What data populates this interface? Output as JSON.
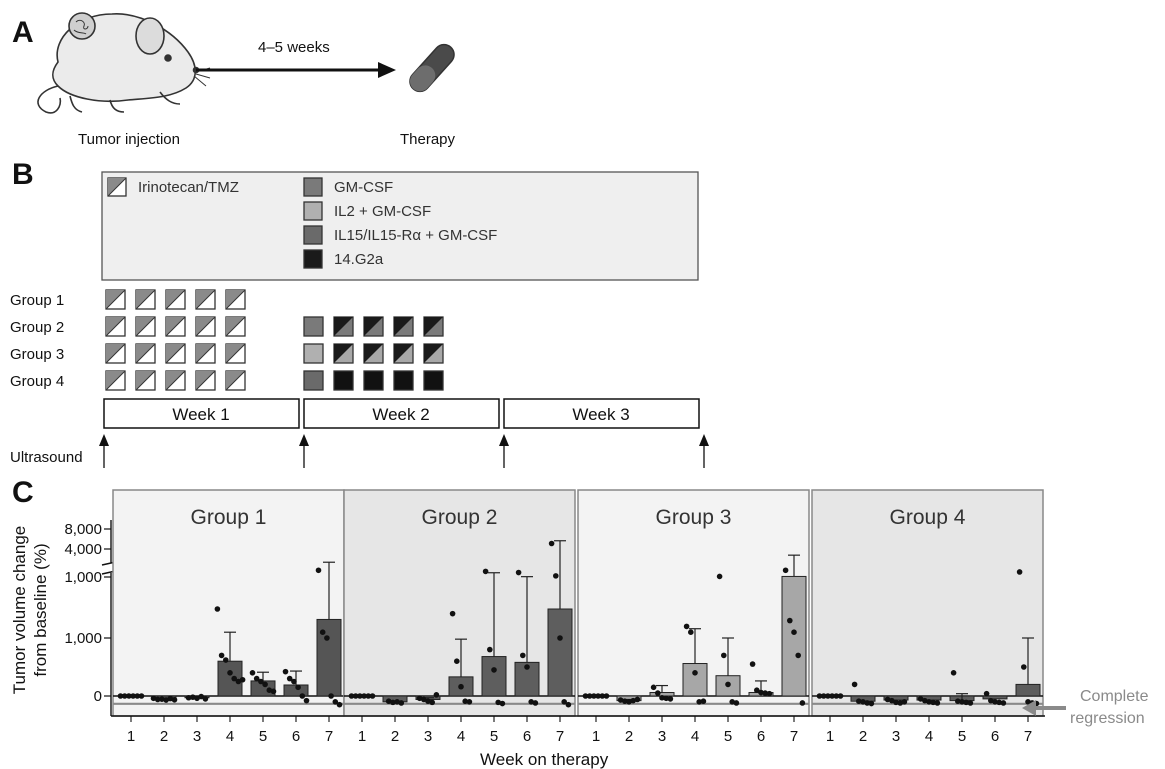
{
  "panelA": {
    "label": "A",
    "duration": "4–5 weeks",
    "left_caption": "Tumor injection",
    "right_caption": "Therapy"
  },
  "panelB": {
    "label": "B",
    "legend": [
      {
        "key": "irino",
        "label": "Irinotecan/TMZ",
        "color": "#8a8a8a",
        "split": true
      },
      {
        "key": "gm",
        "label": "GM-CSF",
        "color": "#7a7a7a"
      },
      {
        "key": "il2",
        "label": "IL2 + GM-CSF",
        "color": "#b0b0b0"
      },
      {
        "key": "il15",
        "label": "IL15/IL15-Rα + GM-CSF",
        "color": "#6a6a6a"
      },
      {
        "key": "g2a",
        "label": "14.G2a",
        "color": "#1a1a1a"
      }
    ],
    "groups": [
      {
        "label": "Group 1",
        "week2_first": null,
        "week2_split": null
      },
      {
        "label": "Group 2",
        "week2_first": "#7a7a7a",
        "week2_split": "#7a7a7a"
      },
      {
        "label": "Group 3",
        "week2_first": "#b0b0b0",
        "week2_split": "#a8a8a8"
      },
      {
        "label": "Group 4",
        "week2_first": "#6a6a6a",
        "week2_split": null
      }
    ],
    "weeks": [
      "Week 1",
      "Week 2",
      "Week 3"
    ],
    "ultrasound_label": "Ultrasound"
  },
  "panelC": {
    "label": "C",
    "complete_regression": "Complete\nregression",
    "x_axis_label": "Week on therapy"
  },
  "chart_data": {
    "type": "bar",
    "ylabel": "Tumor volume change\nfrom baseline (%)",
    "xlabel": "Week on therapy",
    "yticks_lower": [
      "0",
      "1,000"
    ],
    "yticks_upper_broken": [
      "1,000",
      "4,000",
      "8,000"
    ],
    "y_axis_break": true,
    "categories": [
      1,
      2,
      3,
      4,
      5,
      6,
      7
    ],
    "annotation": "Complete regression (reference line at -100%)",
    "panels": [
      {
        "name": "Group 1",
        "bar_color": "#555555",
        "bg": "#f3f3f3",
        "values": [
          0,
          -50,
          -30,
          600,
          260,
          190,
          1320
        ],
        "errors": [
          0,
          10,
          15,
          500,
          150,
          240,
          1500
        ],
        "points": [
          [
            0,
            0,
            0,
            0,
            0,
            0
          ],
          [
            -40,
            -60,
            -55,
            -70,
            -45,
            -65
          ],
          [
            -30,
            -20,
            -40,
            -10,
            -50
          ],
          [
            1500,
            700,
            620,
            400,
            300,
            250,
            280
          ],
          [
            400,
            300,
            250,
            200,
            100,
            80
          ],
          [
            420,
            300,
            250,
            150,
            0,
            -80
          ],
          [
            2100,
            1100,
            1000,
            0,
            -100,
            -150
          ]
        ]
      },
      {
        "name": "Group 2",
        "bar_color": "#5e5e5e",
        "bg": "#e6e6e6",
        "values": [
          0,
          -100,
          -60,
          330,
          680,
          580,
          1500
        ],
        "errors": [
          0,
          10,
          30,
          650,
          1200,
          950,
          4000
        ],
        "points": [
          [
            0,
            0,
            0,
            0,
            0,
            0
          ],
          [
            -90,
            -110,
            -100,
            -120
          ],
          [
            -40,
            -60,
            -90,
            -110,
            20
          ],
          [
            1420,
            600,
            160,
            -90,
            -100
          ],
          [
            2000,
            800,
            450,
            -110,
            -130
          ],
          [
            1900,
            700,
            500,
            -100,
            -120
          ],
          [
            5000,
            1600,
            1000,
            -100,
            -150
          ]
        ]
      },
      {
        "name": "Group 3",
        "bar_color": "#a7a7a7",
        "bg": "#f3f3f3",
        "values": [
          0,
          -80,
          60,
          560,
          350,
          60,
          1550
        ],
        "errors": [
          0,
          20,
          120,
          600,
          650,
          200,
          1900
        ],
        "points": [
          [
            0,
            0,
            0,
            0,
            0,
            0
          ],
          [
            -70,
            -90,
            -100,
            -80,
            -60
          ],
          [
            150,
            50,
            -30,
            -40,
            -50
          ],
          [
            1200,
            1100,
            400,
            -100,
            -90
          ],
          [
            1550,
            700,
            200,
            -100,
            -120
          ],
          [
            550,
            100,
            60,
            50,
            40
          ],
          [
            2100,
            1300,
            1100,
            700,
            -120
          ]
        ]
      },
      {
        "name": "Group 4",
        "bar_color": "#5c5c5c",
        "bg": "#e6e6e6",
        "values": [
          0,
          -90,
          -70,
          -70,
          -80,
          -50,
          200
        ],
        "errors": [
          0,
          0,
          0,
          0,
          120,
          0,
          800
        ],
        "points": [
          [
            0,
            0,
            0,
            0,
            0,
            0
          ],
          [
            200,
            -90,
            -100,
            -120,
            -130
          ],
          [
            -60,
            -80,
            -110,
            -120,
            -100
          ],
          [
            -50,
            -80,
            -100,
            -110,
            -120
          ],
          [
            400,
            -90,
            -100,
            -110,
            -120
          ],
          [
            40,
            -80,
            -100,
            -110,
            -120
          ],
          [
            1950,
            500,
            -100,
            -120,
            -130
          ]
        ]
      }
    ]
  }
}
